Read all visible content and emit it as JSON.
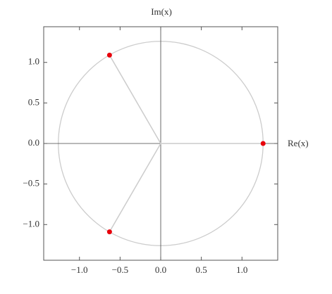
{
  "chart_data": {
    "type": "scatter",
    "x_label": "Re(x)",
    "y_label": "Im(x)",
    "x": [
      1.26,
      -0.63,
      -0.63
    ],
    "series": [
      {
        "values": [
          0,
          1.09,
          -1.09
        ],
        "color": "#e8000b"
      }
    ],
    "circle_radius": 1.26,
    "xlim": [
      -1.44,
      1.44
    ],
    "ylim": [
      -1.44,
      1.44
    ],
    "xticks": [
      {
        "value": -1,
        "label": "−1.0"
      },
      {
        "value": -0.5,
        "label": "−0.5"
      },
      {
        "value": 0,
        "label": "0.0"
      },
      {
        "value": 0.5,
        "label": "0.5"
      },
      {
        "value": 1,
        "label": "1.0"
      }
    ],
    "yticks": [
      {
        "value": -1,
        "label": "−1.0"
      },
      {
        "value": -0.5,
        "label": "−0.5"
      },
      {
        "value": 0,
        "label": "0.0"
      },
      {
        "value": 0.5,
        "label": "0.5"
      },
      {
        "value": 1,
        "label": "1.0"
      }
    ]
  }
}
